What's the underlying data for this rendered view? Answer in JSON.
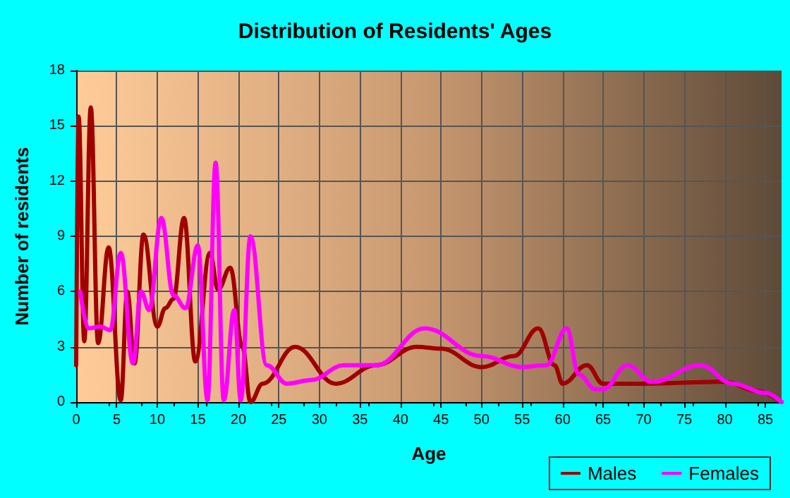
{
  "chart_data": {
    "type": "line",
    "title": "Distribution of Residents' Ages",
    "xlabel": "Age",
    "ylabel": "Number of residents",
    "xlim": [
      0,
      87
    ],
    "xticks": [
      0,
      5,
      10,
      15,
      20,
      25,
      30,
      35,
      40,
      45,
      50,
      55,
      60,
      65,
      70,
      75,
      80,
      85
    ],
    "ylim": [
      0,
      18
    ],
    "yticks": [
      0,
      3,
      6,
      9,
      12,
      15,
      18
    ],
    "grid": true,
    "legend": "bottom right",
    "marker": "none",
    "line_style": "solid",
    "series": [
      {
        "name": "Males",
        "color": "#a00000",
        "x": [
          0,
          0.3,
          1,
          1.8,
          2.7,
          4,
          5.5,
          6.3,
          7.2,
          8.3,
          10,
          11,
          12,
          13.3,
          14.7,
          16.5,
          17.5,
          19,
          20.5,
          21.5,
          23,
          27,
          32,
          37,
          42,
          45,
          50,
          54,
          57,
          59,
          60,
          63,
          65,
          70,
          80,
          84,
          87
        ],
        "values": [
          2,
          15.5,
          3.3,
          16,
          3.2,
          8.4,
          0.1,
          6,
          2.1,
          9.1,
          4.1,
          5.1,
          5.6,
          10,
          2.2,
          8.1,
          6.1,
          7.3,
          3,
          0,
          1,
          3,
          1,
          2,
          3,
          2.9,
          1.9,
          2.5,
          4,
          2,
          1,
          2,
          1,
          1,
          1.1,
          0.6,
          0
        ]
      },
      {
        "name": "Females",
        "color": "#ff00ff",
        "x": [
          0.5,
          1.5,
          3,
          4.2,
          5.5,
          7,
          8,
          9,
          10.5,
          12,
          13.5,
          15,
          16.2,
          17.2,
          18.2,
          19.5,
          20.3,
          21.5,
          23.5,
          26,
          29,
          33,
          37,
          43,
          50,
          55,
          58,
          60.5,
          62,
          64,
          65,
          68,
          71,
          77,
          81,
          85,
          87
        ],
        "values": [
          6,
          4,
          4.1,
          3.9,
          8.1,
          2.1,
          6,
          5,
          10,
          5.8,
          5.1,
          8.5,
          0.1,
          13,
          0.1,
          5,
          0.1,
          9,
          2,
          1,
          1.2,
          2,
          2,
          4,
          2.5,
          1.9,
          2,
          4,
          1.5,
          0.7,
          0.7,
          2,
          1.1,
          2,
          1,
          0.5,
          0
        ]
      }
    ]
  }
}
